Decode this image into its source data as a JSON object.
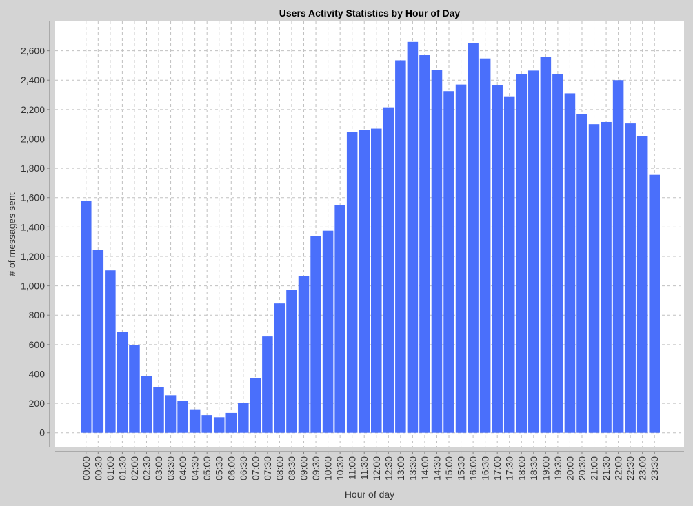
{
  "chart_data": {
    "type": "bar",
    "title": "Users Activity Statistics by Hour of Day",
    "xlabel": "Hour of day",
    "ylabel": "# of messages sent",
    "ylim": [
      -100,
      2800
    ],
    "yticks": [
      0,
      200,
      400,
      600,
      800,
      1000,
      1200,
      1400,
      1600,
      1800,
      2000,
      2200,
      2400,
      2600
    ],
    "ytick_labels": [
      "0",
      "200",
      "400",
      "600",
      "800",
      "1,000",
      "1,200",
      "1,400",
      "1,600",
      "1,800",
      "2,000",
      "2,200",
      "2,400",
      "2,600"
    ],
    "grid": true,
    "legend": "none",
    "bar_color": "#4a6ffb",
    "categories": [
      "00:00",
      "00:30",
      "01:00",
      "01:30",
      "02:00",
      "02:30",
      "03:00",
      "03:30",
      "04:00",
      "04:30",
      "05:00",
      "05:30",
      "06:00",
      "06:30",
      "07:00",
      "07:30",
      "08:00",
      "08:30",
      "09:00",
      "09:30",
      "10:00",
      "10:30",
      "11:00",
      "11:30",
      "12:00",
      "12:30",
      "13:00",
      "13:30",
      "14:00",
      "14:30",
      "15:00",
      "15:30",
      "16:00",
      "16:30",
      "17:00",
      "17:30",
      "18:00",
      "18:30",
      "19:00",
      "19:30",
      "20:00",
      "20:30",
      "21:00",
      "21:30",
      "22:00",
      "22:30",
      "23:00",
      "23:30"
    ],
    "values": [
      1580,
      1245,
      1105,
      688,
      595,
      385,
      310,
      255,
      215,
      155,
      120,
      105,
      135,
      205,
      370,
      655,
      880,
      970,
      1065,
      1340,
      1375,
      1548,
      2045,
      2060,
      2070,
      2215,
      2535,
      2660,
      2570,
      2470,
      2325,
      2370,
      2650,
      2548,
      2365,
      2290,
      2440,
      2465,
      2560,
      2440,
      2310,
      2170,
      2100,
      2115,
      2400,
      2105,
      2020,
      1755
    ]
  }
}
